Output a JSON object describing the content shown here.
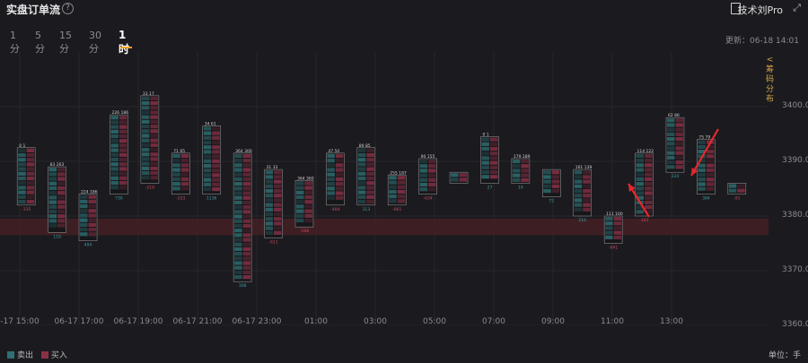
{
  "header": {
    "title": "实盘订单流",
    "help_icon": "?",
    "pro_label": "技术刘Pro",
    "expand_icon": "⤢"
  },
  "timeframes": [
    "1分",
    "5分",
    "15分",
    "30分",
    "1时"
  ],
  "active_timeframe": "1时",
  "updated_text": "更新：06-18 14:01",
  "side_tab": [
    "<",
    "筹",
    "码",
    "分",
    "布"
  ],
  "legend": {
    "sell_label": "卖出",
    "buy_label": "买入"
  },
  "unit_text": "单位：手",
  "colors": {
    "sell": "#2e6f73",
    "buy": "#8a3046",
    "band": "#4a2226",
    "background": "#1b1b1f"
  },
  "chart_data": {
    "type": "footprint",
    "title": "",
    "ylim": [
      3360,
      3410
    ],
    "y_ticks": [
      3400.0,
      3390.0,
      3380.0,
      3370.0,
      3360.0
    ],
    "x_labels": [
      "-17 15:00",
      "06-17 17:00",
      "06-17 19:00",
      "06-17 21:00",
      "06-17 23:00",
      "01:00",
      "03:00",
      "05:00",
      "07:00",
      "09:00",
      "11:00",
      "13:00"
    ],
    "highlight_band": [
      3376.5,
      3379.5
    ],
    "candles": [
      {
        "high": 3392.5,
        "low": 3382,
        "delta": "-335",
        "top": [
          "0",
          "1"
        ]
      },
      {
        "high": 3389,
        "low": 3377,
        "delta": "119",
        "top": [
          "83",
          "263"
        ]
      },
      {
        "high": 3384,
        "low": 3375.5,
        "delta": "494",
        "top": [
          "224",
          "186"
        ]
      },
      {
        "high": 3398.5,
        "low": 3384,
        "delta": "730",
        "top": [
          "226",
          "186"
        ]
      },
      {
        "high": 3402,
        "low": 3386,
        "delta": "-218",
        "top": [
          "33",
          "17"
        ]
      },
      {
        "high": 3391.5,
        "low": 3384,
        "delta": "-333",
        "top": [
          "71",
          "65"
        ]
      },
      {
        "high": 3396.5,
        "low": 3384,
        "delta": "1136",
        "top": [
          "34",
          "61"
        ]
      },
      {
        "high": 3391.5,
        "low": 3368,
        "delta": "308",
        "top": [
          "364",
          "300"
        ]
      },
      {
        "high": 3388.5,
        "low": 3376,
        "delta": "-611",
        "top": [
          "31",
          "33"
        ]
      },
      {
        "high": 3386.5,
        "low": 3378,
        "delta": "-188",
        "top": [
          "364",
          "360"
        ]
      },
      {
        "high": 3391.5,
        "low": 3382,
        "delta": "-484",
        "top": [
          "47",
          "50"
        ]
      },
      {
        "high": 3392.5,
        "low": 3382,
        "delta": "313",
        "top": [
          "89",
          "85"
        ]
      },
      {
        "high": 3387.5,
        "low": 3382,
        "delta": "-861",
        "top": [
          "255",
          "187"
        ]
      },
      {
        "high": 3390.5,
        "low": 3384,
        "delta": "-634",
        "top": [
          "90",
          "155"
        ]
      },
      {
        "high": 3388,
        "low": 3386,
        "delta": "",
        "top": [
          "",
          ""
        ]
      },
      {
        "high": 3394.5,
        "low": 3386,
        "delta": "27",
        "top": [
          "0",
          "1"
        ]
      },
      {
        "high": 3390.5,
        "low": 3386,
        "delta": "19",
        "top": [
          "179",
          "189"
        ]
      },
      {
        "high": 3388.5,
        "low": 3383.5,
        "delta": "72",
        "top": [
          "",
          ""
        ]
      },
      {
        "high": 3388.5,
        "low": 3380,
        "delta": "216",
        "top": [
          "161",
          "139"
        ]
      },
      {
        "high": 3380,
        "low": 3375,
        "delta": "-841",
        "top": [
          "111",
          "100"
        ]
      },
      {
        "high": 3391.5,
        "low": 3380,
        "delta": "-181",
        "top": [
          "114",
          "122"
        ]
      },
      {
        "high": 3398,
        "low": 3388,
        "delta": "224",
        "top": [
          "62",
          "86"
        ]
      },
      {
        "high": 3394,
        "low": 3384,
        "delta": "384",
        "top": [
          "75",
          "79"
        ]
      },
      {
        "high": 3386,
        "low": 3384,
        "delta": "-91",
        "top": [
          "",
          ""
        ]
      }
    ]
  }
}
